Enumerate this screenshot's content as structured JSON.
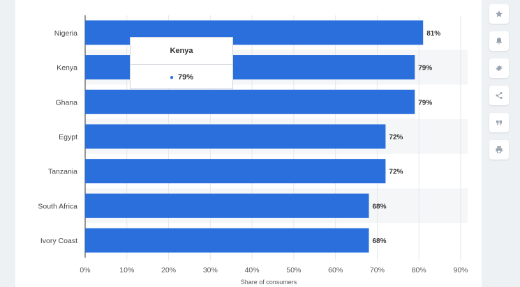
{
  "chart_data": {
    "type": "bar",
    "orientation": "horizontal",
    "categories": [
      "Nigeria",
      "Kenya",
      "Ghana",
      "Egypt",
      "Tanzania",
      "South Africa",
      "Ivory Coast"
    ],
    "values": [
      81,
      79,
      79,
      72,
      72,
      68,
      68
    ],
    "value_labels": [
      "81%",
      "79%",
      "79%",
      "72%",
      "72%",
      "68%",
      "68%"
    ],
    "xlabel": "Share of consumers",
    "xlim": [
      0,
      90
    ],
    "xticks": [
      "0%",
      "10%",
      "20%",
      "30%",
      "40%",
      "50%",
      "60%",
      "70%",
      "80%",
      "90%"
    ],
    "grid": "vertical",
    "bar_color": "#2a6fdb",
    "alt_row_color": "#f5f6f8"
  },
  "tooltip": {
    "title": "Kenya",
    "value": "79%"
  },
  "toolbar": {
    "buttons": [
      "star-icon",
      "bell-icon",
      "gear-icon",
      "share-icon",
      "quote-icon",
      "print-icon"
    ]
  }
}
